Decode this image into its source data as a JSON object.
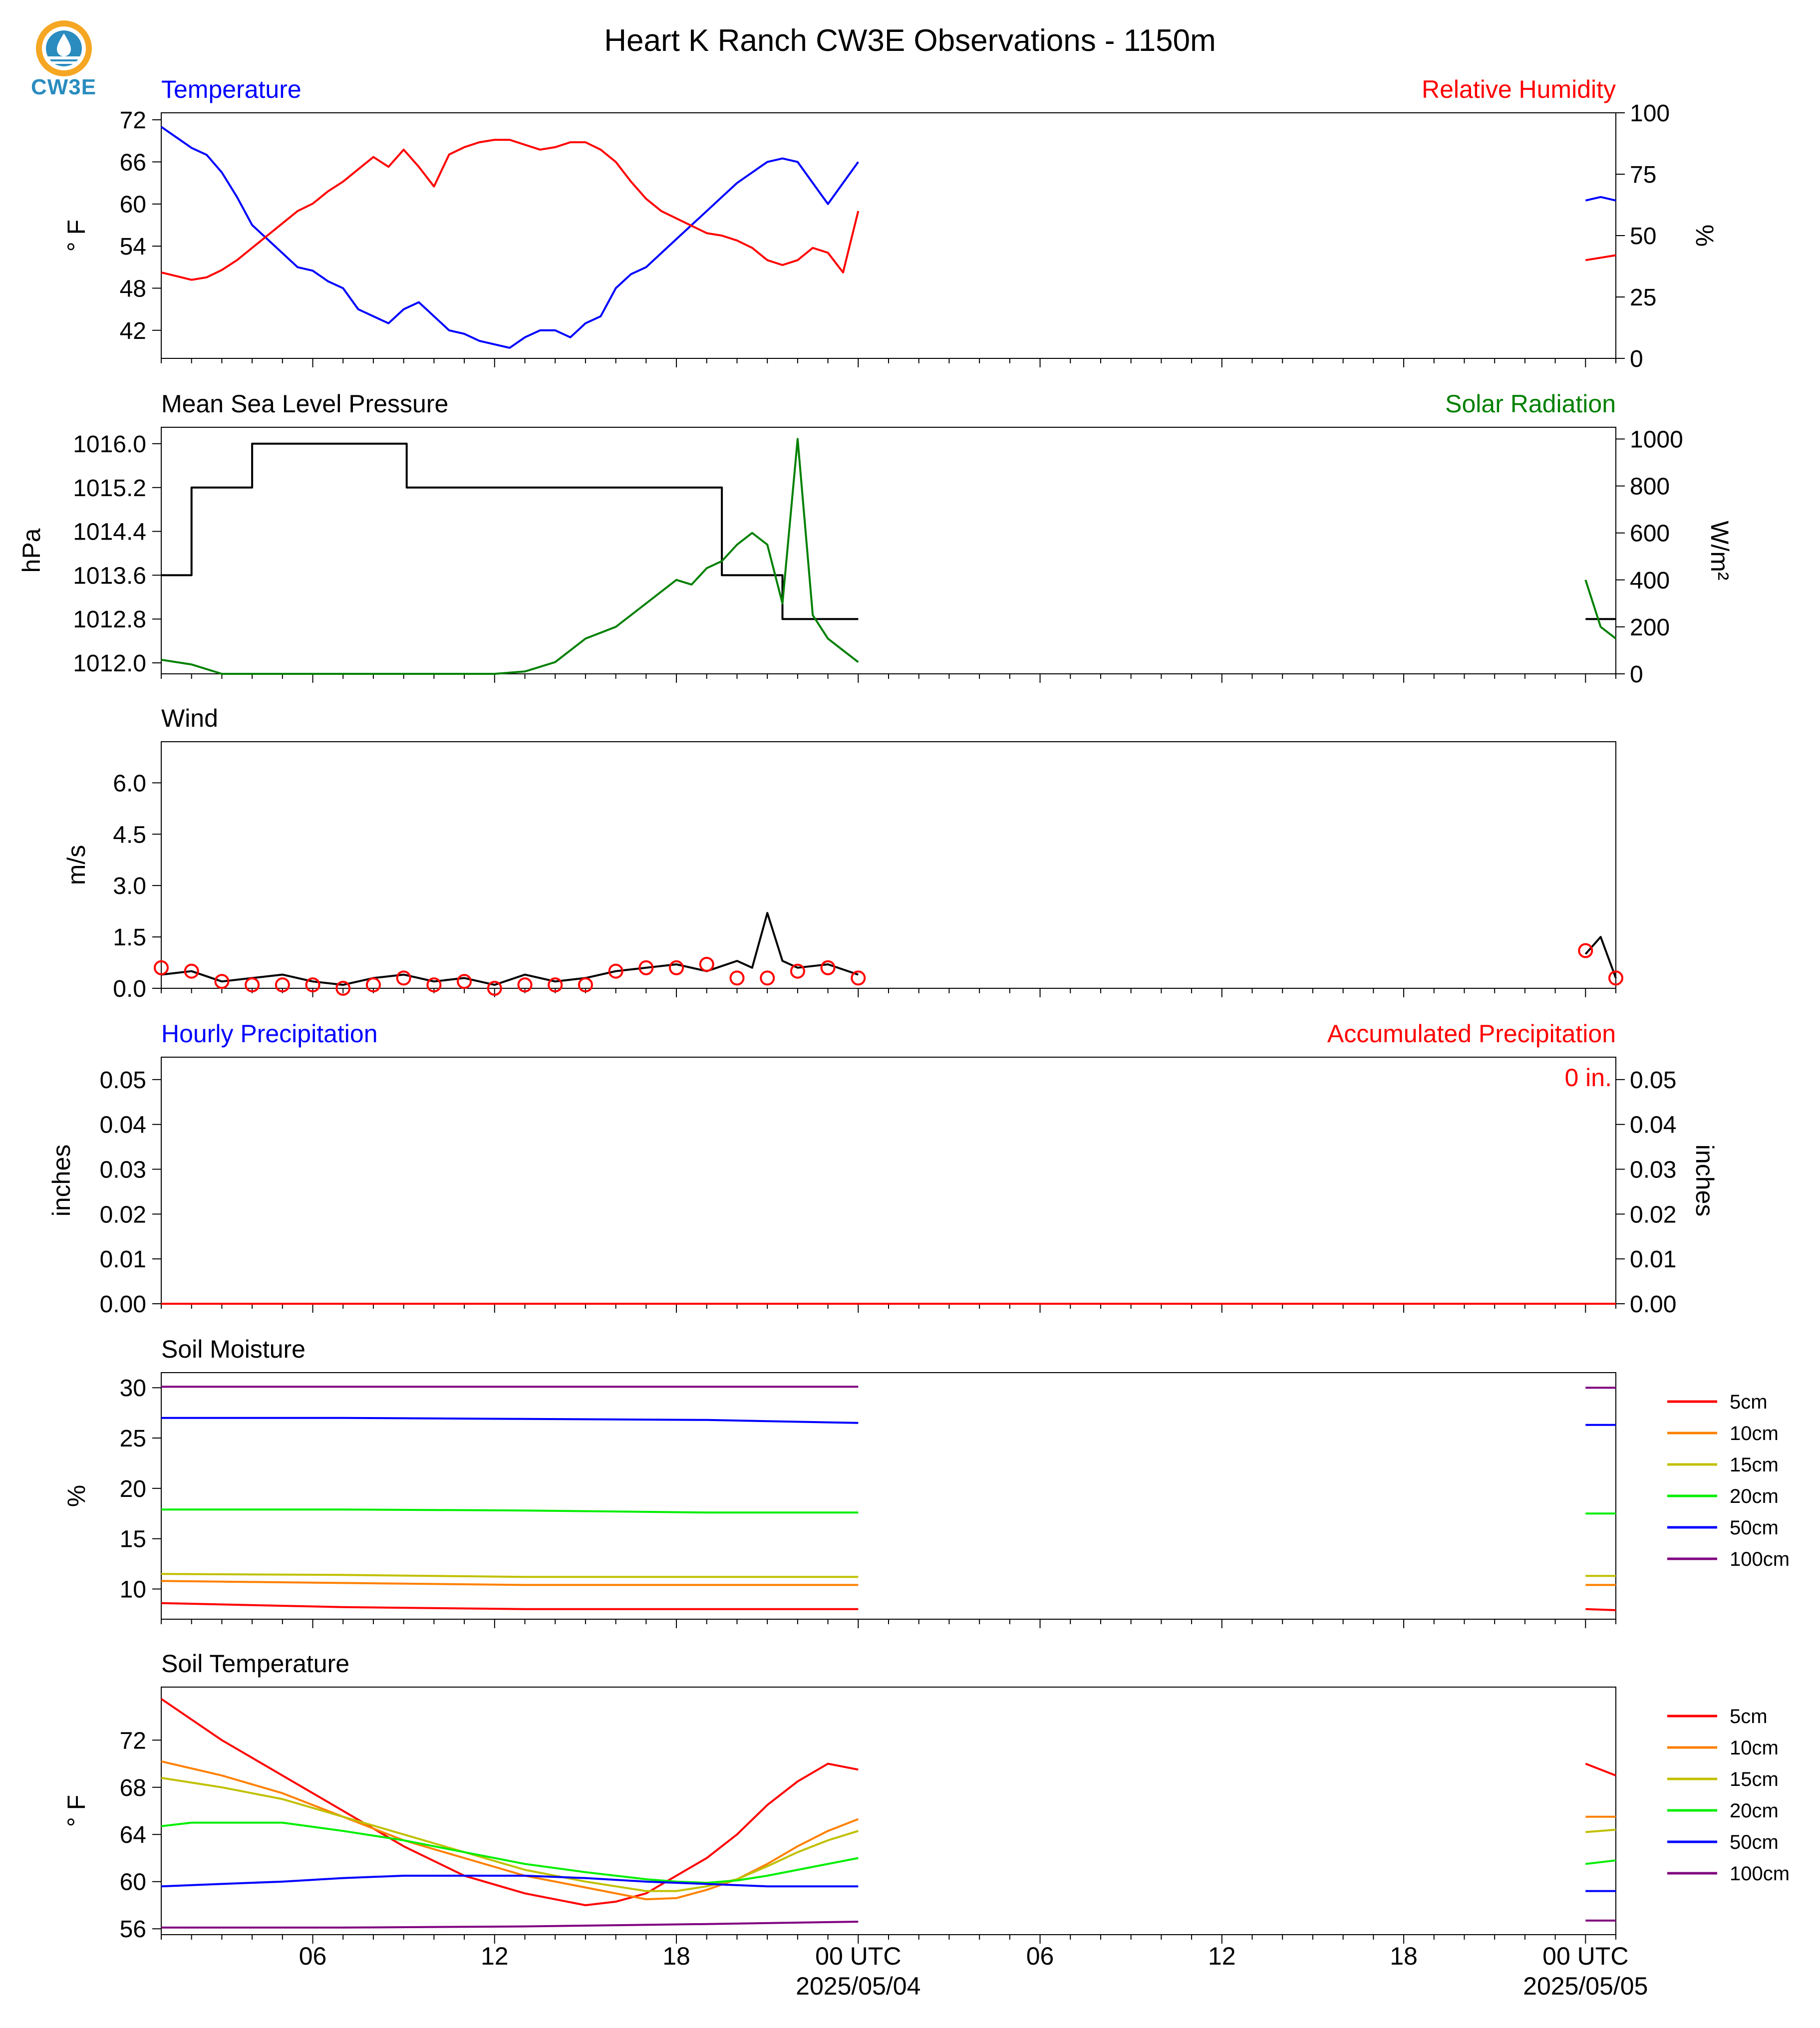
{
  "title": "Heart K Ranch CW3E Observations - 1150m",
  "logo": {
    "text": "CW3E",
    "icon": "cw3e-logo-icon",
    "colors": [
      "#f5a623",
      "#2a8cbf"
    ]
  },
  "colors": {
    "red": "#ff0000",
    "blue": "#0000ff",
    "green": "#008000",
    "black": "#000000",
    "orange": "#ff8000",
    "olive": "#c0c000",
    "lime": "#00ee00",
    "purple": "#800080"
  },
  "x_axis": {
    "range_hours": [
      0,
      48
    ],
    "ticks": [
      {
        "h": 5,
        "label": "06"
      },
      {
        "h": 11,
        "label": "12"
      },
      {
        "h": 17,
        "label": "18"
      },
      {
        "h": 23,
        "label": "00 UTC"
      },
      {
        "h": 29,
        "label": "06"
      },
      {
        "h": 35,
        "label": "12"
      },
      {
        "h": 41,
        "label": "18"
      },
      {
        "h": 47,
        "label": "00 UTC"
      }
    ],
    "dates": [
      {
        "h": 23,
        "label": "2025/05/04"
      },
      {
        "h": 47,
        "label": "2025/05/05"
      }
    ]
  },
  "panels": {
    "temperature": {
      "left_title": "Temperature",
      "right_title": "Relative Humidity",
      "left_label": "° F",
      "right_label": "%"
    },
    "pressure": {
      "left_title": "Mean Sea Level Pressure",
      "right_title": "Solar Radiation",
      "left_label": "hPa",
      "right_label": "W/m²"
    },
    "wind": {
      "left_title": "Wind",
      "left_label": "m/s"
    },
    "precip": {
      "left_title": "Hourly Precipitation",
      "right_title": "Accumulated Precipitation",
      "left_label": "inches",
      "right_label": "inches",
      "accum_text": "0 in."
    },
    "soil_moisture": {
      "left_title": "Soil Moisture",
      "left_label": "%"
    },
    "soil_temp": {
      "left_title": "Soil Temperature",
      "left_label": "° F"
    }
  },
  "chart_data": [
    {
      "type": "line",
      "left_title": "Temperature",
      "right_title": "Relative Humidity",
      "ylabel": "° F",
      "ylabel_right": "%",
      "ylim": [
        38,
        73
      ],
      "yticks": [
        42,
        48,
        54,
        60,
        66,
        72
      ],
      "ylim_right": [
        0,
        100
      ],
      "yticks_right": [
        0,
        25,
        50,
        75,
        100
      ],
      "series": [
        {
          "name": "Temperature",
          "axis": "left",
          "color": "#0000ff",
          "x": [
            0,
            0.5,
            1,
            1.5,
            2,
            2.5,
            3,
            3.5,
            4,
            4.5,
            5,
            5.5,
            6,
            6.5,
            7,
            7.5,
            8,
            8.5,
            9,
            9.5,
            10,
            10.5,
            11,
            11.5,
            12,
            12.5,
            13,
            13.5,
            14,
            14.5,
            15,
            15.5,
            16,
            16.5,
            17,
            17.5,
            18,
            18.5,
            19,
            19.5,
            20,
            20.5,
            21,
            21.5,
            22,
            22.5,
            23
          ],
          "y": [
            71,
            69.5,
            68,
            67,
            64.5,
            61,
            57,
            55,
            53,
            51,
            50.5,
            49,
            48,
            45,
            44,
            43,
            45,
            46,
            44,
            42,
            41.5,
            40.5,
            40,
            39.5,
            41,
            42,
            42,
            41,
            43,
            44,
            48,
            50,
            51,
            53,
            55,
            57,
            59,
            61,
            63,
            64.5,
            66,
            66.5,
            66,
            63,
            60,
            63,
            66
          ],
          "x2": [
            47,
            47.5,
            48
          ],
          "y2": [
            60.5,
            61,
            60.5
          ]
        },
        {
          "name": "Relative Humidity",
          "axis": "right",
          "color": "#ff0000",
          "x": [
            0,
            0.5,
            1,
            1.5,
            2,
            2.5,
            3,
            3.5,
            4,
            4.5,
            5,
            5.5,
            6,
            6.5,
            7,
            7.5,
            8,
            8.5,
            9,
            9.5,
            10,
            10.5,
            11,
            11.5,
            12,
            12.5,
            13,
            13.5,
            14,
            14.5,
            15,
            15.5,
            16,
            16.5,
            17,
            17.5,
            18,
            18.5,
            19,
            19.5,
            20,
            20.5,
            21,
            21.5,
            22,
            22.5,
            23
          ],
          "y": [
            35,
            33.5,
            32,
            33,
            36,
            40,
            45,
            50,
            55,
            60,
            63,
            68,
            72,
            77,
            82,
            78,
            85,
            78,
            70,
            83,
            86,
            88,
            89,
            89,
            87,
            85,
            86,
            88,
            88,
            85,
            80,
            72,
            65,
            60,
            57,
            54,
            51,
            50,
            48,
            45,
            40,
            38,
            40,
            45,
            43,
            35,
            60
          ],
          "x2": [
            47,
            47.5,
            48
          ],
          "y2": [
            40,
            41,
            42
          ]
        }
      ]
    },
    {
      "type": "line",
      "left_title": "Mean Sea Level Pressure",
      "right_title": "Solar Radiation",
      "ylabel": "hPa",
      "ylabel_right": "W/m²",
      "ylim": [
        1011.8,
        1016.3
      ],
      "yticks": [
        1012.0,
        1012.8,
        1013.6,
        1014.4,
        1015.2,
        1016.0
      ],
      "ylim_right": [
        0,
        1050
      ],
      "yticks_right": [
        0,
        200,
        400,
        600,
        800,
        1000
      ],
      "series": [
        {
          "name": "Mean Sea Level Pressure",
          "axis": "left",
          "color": "#000000",
          "step": true,
          "x": [
            0,
            1,
            1,
            3,
            3,
            8.1,
            8.1,
            18.5,
            18.5,
            20.5,
            20.5,
            23
          ],
          "y": [
            1013.6,
            1013.6,
            1015.2,
            1015.2,
            1016.0,
            1016.0,
            1015.2,
            1015.2,
            1013.6,
            1013.6,
            1012.8,
            1012.8
          ],
          "x2": [
            47,
            47.5,
            48
          ],
          "y2": [
            1012.8,
            1012.8,
            1012.8
          ]
        },
        {
          "name": "Solar Radiation",
          "axis": "right",
          "color": "#008000",
          "x": [
            0,
            1,
            2,
            11,
            12,
            13,
            14,
            15,
            15.5,
            16,
            16.5,
            17,
            17.5,
            18,
            18.5,
            19,
            19.5,
            20,
            20.5,
            21,
            21.5,
            22,
            22.5,
            23
          ],
          "y": [
            60,
            40,
            0,
            0,
            10,
            50,
            150,
            200,
            250,
            300,
            350,
            400,
            380,
            450,
            480,
            550,
            600,
            550,
            300,
            1000,
            250,
            150,
            100,
            50
          ],
          "x2": [
            47,
            47.5,
            48
          ],
          "y2": [
            400,
            200,
            150
          ]
        }
      ]
    },
    {
      "type": "line",
      "left_title": "Wind",
      "ylabel": "m/s",
      "ylim": [
        0,
        7.2
      ],
      "yticks": [
        0.0,
        1.5,
        3.0,
        4.5,
        6.0
      ],
      "series": [
        {
          "name": "Wind",
          "axis": "left",
          "color": "#000000",
          "x": [
            0,
            1,
            2,
            3,
            4,
            5,
            6,
            7,
            8,
            9,
            10,
            11,
            12,
            13,
            14,
            15,
            16,
            17,
            18,
            19,
            19.5,
            20,
            20.5,
            21,
            22,
            23
          ],
          "y": [
            0.4,
            0.5,
            0.2,
            0.3,
            0.4,
            0.2,
            0.1,
            0.3,
            0.4,
            0.2,
            0.3,
            0.1,
            0.4,
            0.2,
            0.3,
            0.5,
            0.6,
            0.7,
            0.5,
            0.8,
            0.6,
            2.2,
            0.8,
            0.6,
            0.7,
            0.4
          ],
          "x2": [
            47,
            47.5,
            48
          ],
          "y2": [
            1.0,
            1.5,
            0.3
          ]
        },
        {
          "name": "Gust",
          "axis": "left",
          "color": "#ff0000",
          "markers": true,
          "x": [
            0,
            1,
            2,
            3,
            4,
            5,
            6,
            7,
            8,
            9,
            10,
            11,
            12,
            13,
            14,
            15,
            16,
            17,
            18,
            19,
            20,
            21,
            22,
            23
          ],
          "y": [
            0.6,
            0.5,
            0.2,
            0.1,
            0.1,
            0.1,
            0.0,
            0.1,
            0.3,
            0.1,
            0.2,
            0.0,
            0.1,
            0.1,
            0.1,
            0.5,
            0.6,
            0.6,
            0.7,
            0.3,
            0.3,
            0.5,
            0.6,
            0.3
          ],
          "x2": [
            47,
            48
          ],
          "y2": [
            1.1,
            0.3
          ]
        }
      ]
    },
    {
      "type": "line",
      "left_title": "Hourly Precipitation",
      "right_title": "Accumulated Precipitation",
      "ylabel": "inches",
      "ylabel_right": "inches",
      "ylim": [
        0,
        0.055
      ],
      "yticks": [
        0.0,
        0.01,
        0.02,
        0.03,
        0.04,
        0.05
      ],
      "ylim_right": [
        0,
        0.055
      ],
      "yticks_right": [
        0.0,
        0.01,
        0.02,
        0.03,
        0.04,
        0.05
      ],
      "annotation": "0 in.",
      "series": [
        {
          "name": "Hourly Precipitation",
          "axis": "left",
          "color": "#0000ff",
          "x": [
            0,
            48
          ],
          "y": [
            0,
            0
          ]
        },
        {
          "name": "Accumulated Precipitation",
          "axis": "right",
          "color": "#ff0000",
          "x": [
            0,
            48
          ],
          "y": [
            0,
            0
          ]
        }
      ]
    },
    {
      "type": "line",
      "left_title": "Soil Moisture",
      "ylabel": "%",
      "ylim": [
        7,
        31.5
      ],
      "yticks": [
        10,
        15,
        20,
        25,
        30
      ],
      "legend": "right",
      "series": [
        {
          "name": "5cm",
          "color": "#ff0000",
          "x": [
            0,
            6,
            12,
            18,
            23
          ],
          "y": [
            8.6,
            8.2,
            8.0,
            8.0,
            8.0
          ],
          "x2": [
            47,
            48
          ],
          "y2": [
            8.0,
            7.9
          ]
        },
        {
          "name": "10cm",
          "color": "#ff8000",
          "x": [
            0,
            6,
            12,
            18,
            23
          ],
          "y": [
            10.8,
            10.6,
            10.4,
            10.4,
            10.4
          ],
          "x2": [
            47,
            48
          ],
          "y2": [
            10.4,
            10.4
          ]
        },
        {
          "name": "15cm",
          "color": "#c0c000",
          "x": [
            0,
            6,
            12,
            18,
            23
          ],
          "y": [
            11.5,
            11.4,
            11.2,
            11.2,
            11.2
          ],
          "x2": [
            47,
            48
          ],
          "y2": [
            11.3,
            11.3
          ]
        },
        {
          "name": "20cm",
          "color": "#00ee00",
          "x": [
            0,
            6,
            12,
            18,
            23
          ],
          "y": [
            17.9,
            17.9,
            17.8,
            17.6,
            17.6
          ],
          "x2": [
            47,
            48
          ],
          "y2": [
            17.5,
            17.5
          ]
        },
        {
          "name": "50cm",
          "color": "#0000ff",
          "x": [
            0,
            6,
            12,
            18,
            23
          ],
          "y": [
            27.0,
            27.0,
            26.9,
            26.8,
            26.5
          ],
          "x2": [
            47,
            48
          ],
          "y2": [
            26.3,
            26.3
          ]
        },
        {
          "name": "100cm",
          "color": "#800080",
          "x": [
            0,
            6,
            12,
            18,
            23
          ],
          "y": [
            30.1,
            30.1,
            30.1,
            30.1,
            30.1
          ],
          "x2": [
            47,
            48
          ],
          "y2": [
            30.0,
            30.0
          ]
        }
      ]
    },
    {
      "type": "line",
      "left_title": "Soil Temperature",
      "ylabel": "° F",
      "ylim": [
        55.5,
        76.5
      ],
      "yticks": [
        56,
        60,
        64,
        68,
        72
      ],
      "legend": "right",
      "series": [
        {
          "name": "5cm",
          "color": "#ff0000",
          "x": [
            0,
            2,
            4,
            6,
            8,
            10,
            12,
            14,
            15,
            16,
            17,
            18,
            19,
            20,
            21,
            22,
            23
          ],
          "y": [
            75.5,
            72,
            69,
            66,
            63,
            60.5,
            59,
            58,
            58.3,
            59,
            60.5,
            62,
            64,
            66.5,
            68.5,
            70,
            69.5
          ],
          "x2": [
            47,
            48
          ],
          "y2": [
            70,
            69
          ]
        },
        {
          "name": "10cm",
          "color": "#ff8000",
          "x": [
            0,
            2,
            4,
            6,
            8,
            10,
            12,
            14,
            16,
            17,
            18,
            19,
            20,
            21,
            22,
            23
          ],
          "y": [
            70.2,
            69,
            67.5,
            65.5,
            63.5,
            62,
            60.5,
            59.5,
            58.5,
            58.6,
            59.3,
            60.2,
            61.5,
            63,
            64.3,
            65.3
          ],
          "x2": [
            47,
            48
          ],
          "y2": [
            65.5,
            65.5
          ]
        },
        {
          "name": "15cm",
          "color": "#c0c000",
          "x": [
            0,
            2,
            4,
            6,
            8,
            10,
            12,
            14,
            16,
            17,
            18,
            19,
            20,
            21,
            22,
            23
          ],
          "y": [
            68.8,
            68,
            67,
            65.5,
            64,
            62.5,
            61,
            60,
            59.2,
            59.2,
            59.6,
            60.2,
            61.3,
            62.5,
            63.5,
            64.3
          ],
          "x2": [
            47,
            48
          ],
          "y2": [
            64.2,
            64.4
          ]
        },
        {
          "name": "20cm",
          "color": "#00ee00",
          "x": [
            0,
            1,
            2,
            3,
            4,
            6,
            8,
            10,
            12,
            14,
            16,
            17,
            18,
            19,
            20,
            21,
            22,
            23
          ],
          "y": [
            64.7,
            65,
            65,
            65,
            65,
            64.3,
            63.5,
            62.5,
            61.5,
            60.8,
            60.2,
            60,
            59.9,
            60.1,
            60.5,
            61,
            61.5,
            62
          ],
          "x2": [
            47,
            48
          ],
          "y2": [
            61.5,
            61.8
          ]
        },
        {
          "name": "50cm",
          "color": "#0000ff",
          "x": [
            0,
            2,
            4,
            6,
            8,
            10,
            12,
            14,
            16,
            18,
            20,
            23
          ],
          "y": [
            59.6,
            59.8,
            60,
            60.3,
            60.5,
            60.5,
            60.5,
            60.3,
            60,
            59.8,
            59.6,
            59.6
          ],
          "x2": [
            47,
            48
          ],
          "y2": [
            59.2,
            59.2
          ]
        },
        {
          "name": "100cm",
          "color": "#800080",
          "x": [
            0,
            6,
            12,
            18,
            23
          ],
          "y": [
            56.1,
            56.1,
            56.2,
            56.4,
            56.6
          ],
          "x2": [
            47,
            48
          ],
          "y2": [
            56.7,
            56.7
          ]
        }
      ]
    }
  ]
}
